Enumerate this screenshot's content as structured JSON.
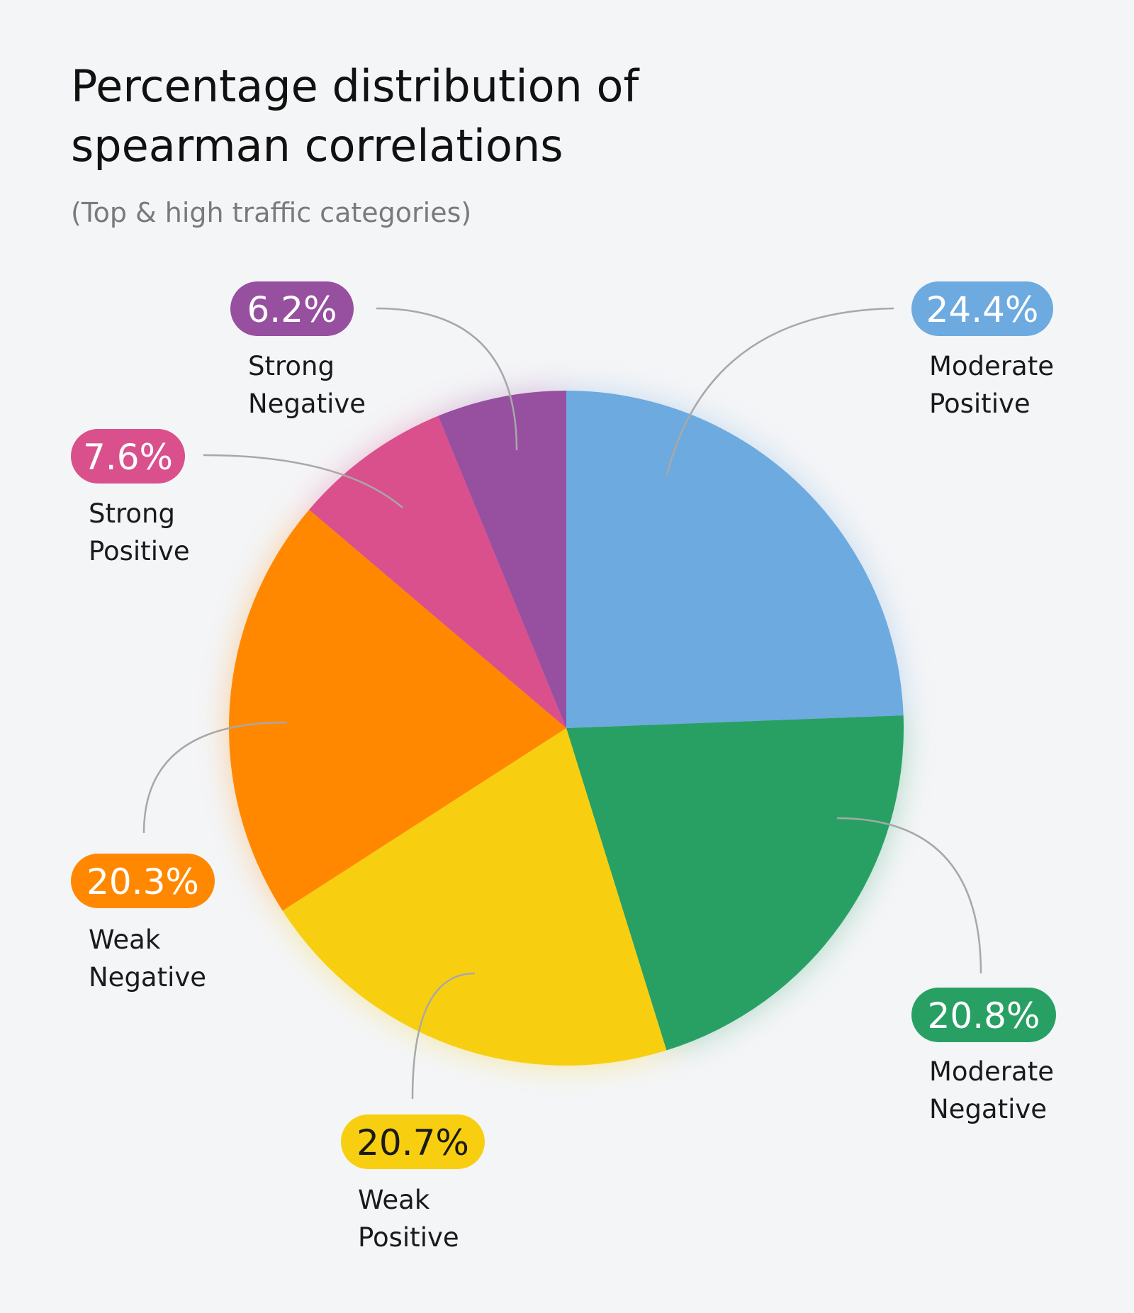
{
  "chart_data": {
    "type": "pie",
    "title": "Percentage distribution of spearman correlations",
    "subtitle": "(Top & high traffic categories)",
    "categories": [
      "Moderate Positive",
      "Moderate Negative",
      "Weak Positive",
      "Weak Negative",
      "Strong Positive",
      "Strong Negative"
    ],
    "values": [
      24.4,
      20.8,
      20.7,
      20.3,
      7.6,
      6.2
    ],
    "value_labels": [
      "24.4%",
      "20.8%",
      "20.7%",
      "20.3%",
      "7.6%",
      "6.2%"
    ],
    "colors": [
      "#6daae0",
      "#28a064",
      "#f8cf10",
      "#ff8800",
      "#d9508d",
      "#974fa0"
    ]
  }
}
